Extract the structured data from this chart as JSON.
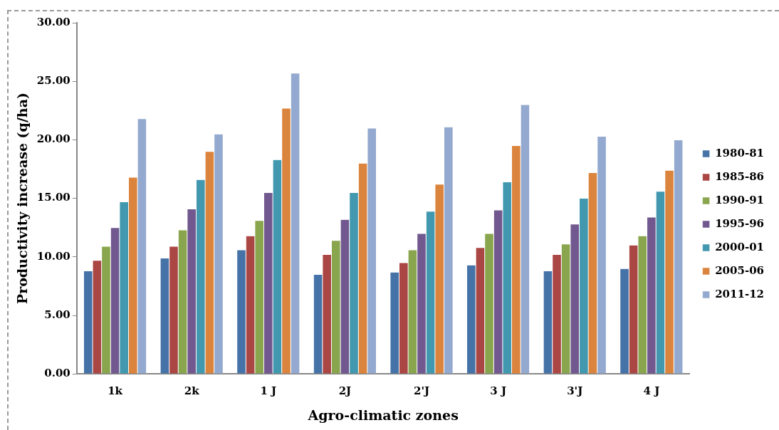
{
  "chart_data": {
    "type": "bar",
    "xlabel": "Agro-climatic zones",
    "ylabel": "Productivity increase (q/ha)",
    "categories": [
      "1k",
      "2k",
      "1 J",
      "2J",
      "2'J",
      "3 J",
      "3'J",
      "4 J"
    ],
    "series": [
      {
        "name": "1980-81",
        "color": "#4572a7",
        "values": [
          8.8,
          9.9,
          10.6,
          8.5,
          8.7,
          9.3,
          8.8,
          9.0
        ]
      },
      {
        "name": "1985-86",
        "color": "#aa4643",
        "values": [
          9.7,
          10.9,
          11.8,
          10.2,
          9.5,
          10.8,
          10.2,
          11.0
        ]
      },
      {
        "name": "1990-91",
        "color": "#89a54e",
        "values": [
          10.9,
          12.3,
          13.1,
          11.4,
          10.6,
          12.0,
          11.1,
          11.8
        ]
      },
      {
        "name": "1995-96",
        "color": "#71588f",
        "values": [
          12.5,
          14.1,
          15.5,
          13.2,
          12.0,
          14.0,
          12.8,
          13.4
        ]
      },
      {
        "name": "2000-01",
        "color": "#4198af",
        "values": [
          14.7,
          16.6,
          18.3,
          15.5,
          13.9,
          16.4,
          15.0,
          15.6
        ]
      },
      {
        "name": "2005-06",
        "color": "#db843d",
        "values": [
          16.8,
          19.0,
          22.7,
          18.0,
          16.2,
          19.5,
          17.2,
          17.4
        ]
      },
      {
        "name": "2011-12",
        "color": "#93a9cf",
        "values": [
          21.8,
          20.5,
          25.7,
          21.0,
          21.1,
          23.0,
          20.3,
          20.0
        ]
      }
    ],
    "ylim": [
      0,
      30
    ],
    "yticks": [
      {
        "value": 0,
        "label": "0.00"
      },
      {
        "value": 5,
        "label": "5.00"
      },
      {
        "value": 10,
        "label": "10.00"
      },
      {
        "value": 15,
        "label": "15.00"
      },
      {
        "value": 20,
        "label": "20.00"
      },
      {
        "value": 25,
        "label": "25.00"
      },
      {
        "value": 30,
        "label": "30.00"
      }
    ],
    "grid": false,
    "legend": "right"
  }
}
